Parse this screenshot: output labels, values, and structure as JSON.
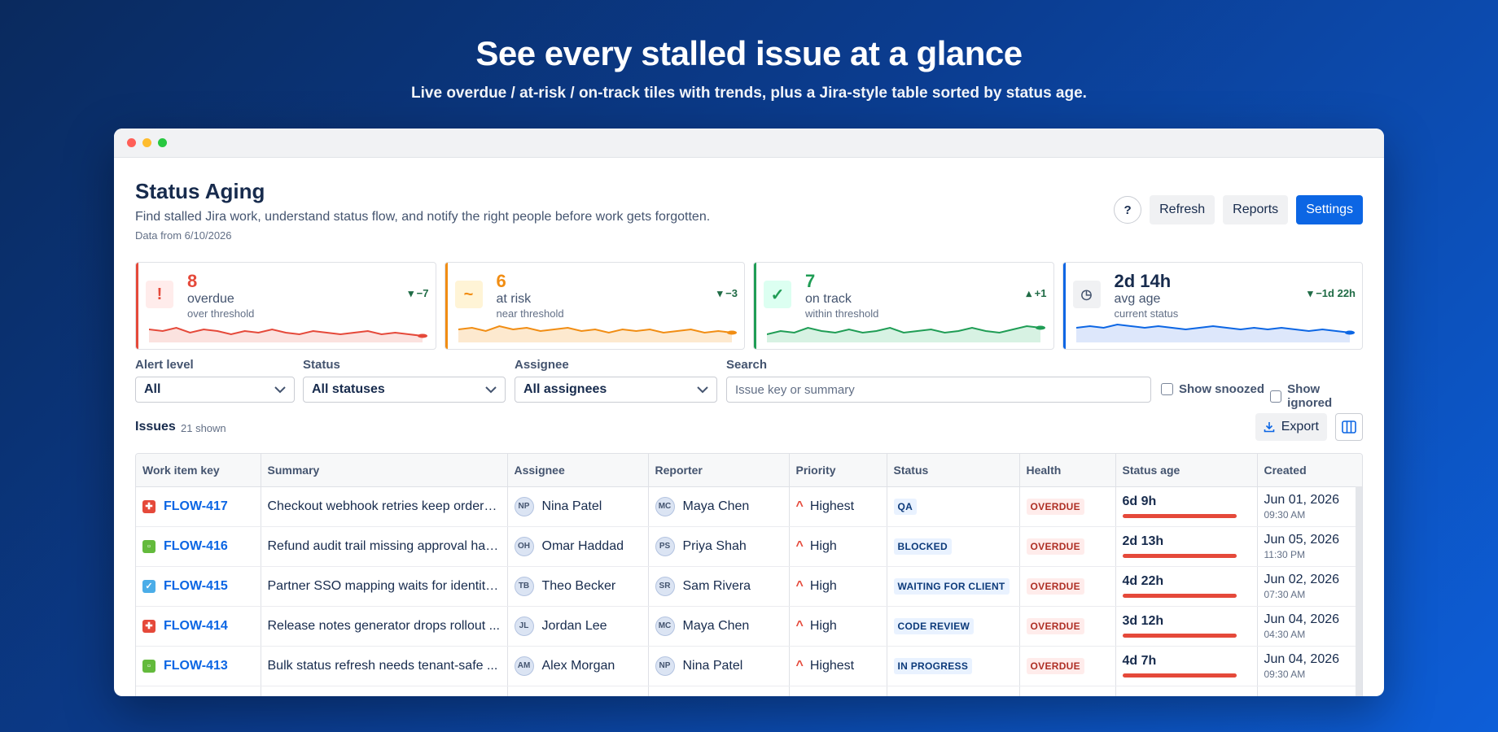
{
  "hero": {
    "title": "See every stalled issue at a glance",
    "subtitle": "Live overdue / at-risk / on-track tiles with trends, plus a Jira-style table sorted by status age."
  },
  "page": {
    "title": "Status Aging",
    "description": "Find stalled Jira work, understand status flow, and notify the right people before work gets forgotten.",
    "data_date": "Data from 6/10/2026",
    "help_label": "?",
    "refresh_label": "Refresh",
    "reports_label": "Reports",
    "settings_label": "Settings"
  },
  "tiles": [
    {
      "value": "8",
      "label": "overdue",
      "sub": "over threshold",
      "trend": "▾ −7",
      "icon": "!",
      "color": "#e5493a",
      "icon_bg": "#ffeceb",
      "fill": "#fbe2df",
      "spark": [
        6,
        5,
        7,
        4,
        6,
        5,
        3,
        5,
        4,
        6,
        4,
        3,
        5,
        4,
        3,
        4,
        5,
        3,
        4,
        3,
        2
      ]
    },
    {
      "value": "6",
      "label": "at risk",
      "sub": "near threshold",
      "trend": "▾ −3",
      "icon": "~",
      "color": "#f18d13",
      "icon_bg": "#fff4d6",
      "fill": "#fde9cf",
      "spark": [
        6,
        7,
        5,
        8,
        6,
        7,
        5,
        6,
        7,
        5,
        6,
        4,
        6,
        5,
        6,
        4,
        5,
        6,
        4,
        5,
        4
      ]
    },
    {
      "value": "7",
      "label": "on track",
      "sub": "within threshold",
      "trend": "▴ +1",
      "icon": "✓",
      "color": "#1f9d55",
      "icon_bg": "#dcfff1",
      "fill": "#d7f2e3",
      "spark": [
        3,
        5,
        4,
        7,
        5,
        4,
        6,
        4,
        5,
        7,
        4,
        5,
        6,
        4,
        5,
        7,
        5,
        4,
        6,
        8,
        7
      ]
    },
    {
      "value": "2d 14h",
      "label": "avg age",
      "sub": "current status",
      "trend": "▾ −1d 22h",
      "icon": "◷",
      "color": "#0c66e4",
      "icon_bg": "#f0f1f3",
      "fill": "#dde7fb",
      "spark": [
        7,
        8,
        7,
        9,
        8,
        7,
        8,
        7,
        6,
        7,
        8,
        7,
        6,
        7,
        6,
        7,
        6,
        5,
        6,
        5,
        4
      ]
    }
  ],
  "filters": {
    "alert_label": "Alert level",
    "alert_value": "All",
    "status_label": "Status",
    "status_value": "All statuses",
    "assignee_label": "Assignee",
    "assignee_value": "All assignees",
    "search_label": "Search",
    "search_placeholder": "Issue key or summary",
    "snoozed_label": "Show snoozed",
    "ignored_label": "Show ignored"
  },
  "issues": {
    "title": "Issues",
    "count": "21 shown",
    "export_label": "Export",
    "columns": [
      "Work item key",
      "Summary",
      "Assignee",
      "Reporter",
      "Priority",
      "Status",
      "Health",
      "Status age",
      "Created"
    ],
    "rows": [
      {
        "type": "bug",
        "key": "FLOW-417",
        "summary": "Checkout webhook retries keep orders...",
        "assignee_initials": "NP",
        "assignee": "Nina Patel",
        "reporter_initials": "MC",
        "reporter": "Maya Chen",
        "priority": "Highest",
        "status": "QA",
        "health": "OVERDUE",
        "age": "6d 9h",
        "created_date": "Jun 01, 2026",
        "created_time": "09:30 AM"
      },
      {
        "type": "story",
        "key": "FLOW-416",
        "summary": "Refund audit trail missing approval han...",
        "assignee_initials": "OH",
        "assignee": "Omar Haddad",
        "reporter_initials": "PS",
        "reporter": "Priya Shah",
        "priority": "High",
        "status": "BLOCKED",
        "health": "OVERDUE",
        "age": "2d 13h",
        "created_date": "Jun 05, 2026",
        "created_time": "11:30 PM"
      },
      {
        "type": "task",
        "key": "FLOW-415",
        "summary": "Partner SSO mapping waits for identity...",
        "assignee_initials": "TB",
        "assignee": "Theo Becker",
        "reporter_initials": "SR",
        "reporter": "Sam Rivera",
        "priority": "High",
        "status": "WAITING FOR CLIENT",
        "health": "OVERDUE",
        "age": "4d 22h",
        "created_date": "Jun 02, 2026",
        "created_time": "07:30 AM"
      },
      {
        "type": "bug",
        "key": "FLOW-414",
        "summary": "Release notes generator drops rollout ...",
        "assignee_initials": "JL",
        "assignee": "Jordan Lee",
        "reporter_initials": "MC",
        "reporter": "Maya Chen",
        "priority": "High",
        "status": "CODE REVIEW",
        "health": "OVERDUE",
        "age": "3d 12h",
        "created_date": "Jun 04, 2026",
        "created_time": "04:30 AM"
      },
      {
        "type": "story",
        "key": "FLOW-413",
        "summary": "Bulk status refresh needs tenant-safe ...",
        "assignee_initials": "AM",
        "assignee": "Alex Morgan",
        "reporter_initials": "NP",
        "reporter": "Nina Patel",
        "priority": "Highest",
        "status": "IN PROGRESS",
        "health": "OVERDUE",
        "age": "4d 7h",
        "created_date": "Jun 04, 2026",
        "created_time": "09:30 AM"
      }
    ]
  }
}
